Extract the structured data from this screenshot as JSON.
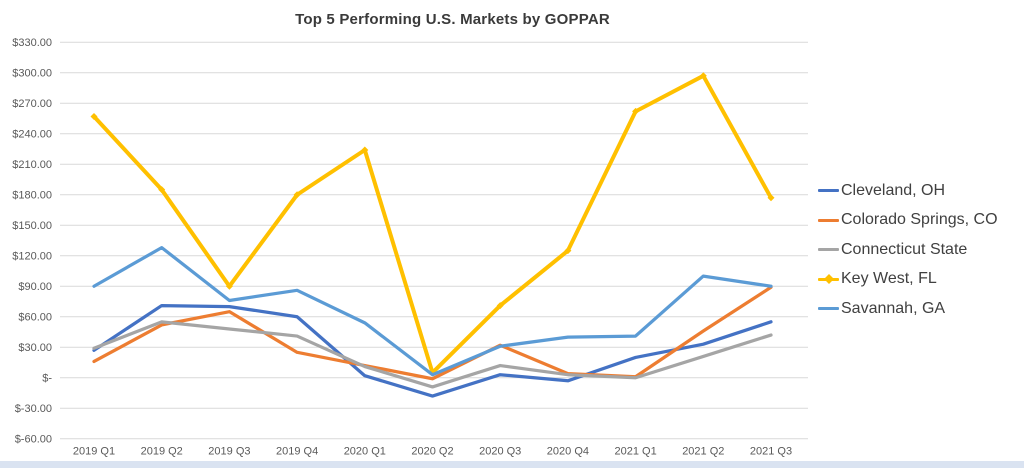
{
  "title": "Top 5 Performing U.S. Markets by GOPPAR",
  "page": {
    "bottom_strip_color": "#DAE3F1",
    "background_color": "#FFFFFF"
  },
  "chart_data": {
    "type": "line",
    "title": "Top 5 Performing U.S. Markets by GOPPAR",
    "categories": [
      "2019 Q1",
      "2019 Q2",
      "2019 Q3",
      "2019 Q4",
      "2020 Q1",
      "2020 Q2",
      "2020 Q3",
      "2020 Q4",
      "2021 Q1",
      "2021 Q2",
      "2021 Q3"
    ],
    "series": [
      {
        "name": "Cleveland, OH",
        "color": "#4472C4",
        "values": [
          27,
          71,
          70,
          60,
          2,
          -18,
          3,
          -3,
          20,
          33,
          55
        ]
      },
      {
        "name": "Colorado Springs, CO",
        "color": "#ED7D31",
        "values": [
          16,
          52,
          65,
          25,
          12,
          -1,
          32,
          4,
          1,
          46,
          89
        ]
      },
      {
        "name": "Connecticut State",
        "color": "#A5A5A5",
        "values": [
          29,
          55,
          48,
          41,
          11,
          -9,
          12,
          3,
          0,
          21,
          42
        ]
      },
      {
        "name": "Key West, FL",
        "color": "#FFC000",
        "marker": "diamond",
        "values": [
          257,
          185,
          90,
          180,
          224,
          5,
          71,
          125,
          262,
          297,
          177
        ]
      },
      {
        "name": "Savannah, GA",
        "color": "#5B9BD5",
        "values": [
          90,
          128,
          76,
          86,
          54,
          3,
          31,
          40,
          41,
          100,
          90
        ]
      }
    ],
    "y_axis": {
      "min": -60,
      "max": 330,
      "step": 30,
      "tick_labels": [
        "$330.00",
        "$300.00",
        "$270.00",
        "$240.00",
        "$210.00",
        "$180.00",
        "$150.00",
        "$120.00",
        "$90.00",
        "$60.00",
        "$30.00",
        "$-",
        "$-30.00",
        "$-60.00"
      ]
    },
    "x_axis": {
      "label": "",
      "tick_labels": [
        "2019 Q1",
        "2019 Q2",
        "2019 Q3",
        "2019 Q4",
        "2020 Q1",
        "2020 Q2",
        "2020 Q3",
        "2020 Q4",
        "2021 Q1",
        "2021 Q2",
        "2021 Q3"
      ]
    },
    "grid": true,
    "gridline_color": "#D9D9D9",
    "legend_position": "right",
    "ylabel": "",
    "xlabel": ""
  }
}
